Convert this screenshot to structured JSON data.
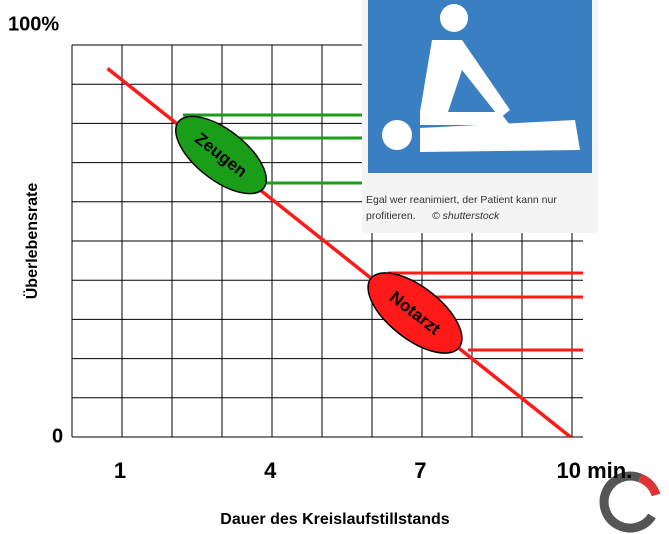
{
  "chart_data": {
    "type": "line",
    "y_label": "Überlebensrate",
    "x_label": "Dauer des Kreislaufstillstands",
    "xlim": [
      0,
      10.25
    ],
    "ylim": [
      0,
      100
    ],
    "xticks": [
      1,
      4,
      7,
      {
        "value": 10,
        "label": "10 min."
      }
    ],
    "yticks": [
      0,
      {
        "value": 100,
        "label": "100%"
      }
    ],
    "grid": true,
    "series": [
      {
        "color": "#ff1a1a",
        "x": [
          0.75,
          10
        ],
        "values": [
          94,
          0
        ]
      }
    ],
    "annotations": [
      "Zeugen",
      "Notarzt"
    ],
    "image_caption": [
      "Egal wer reanimiert, der Patient kann nur",
      "profitieren.",
      "© shutterstock"
    ]
  }
}
